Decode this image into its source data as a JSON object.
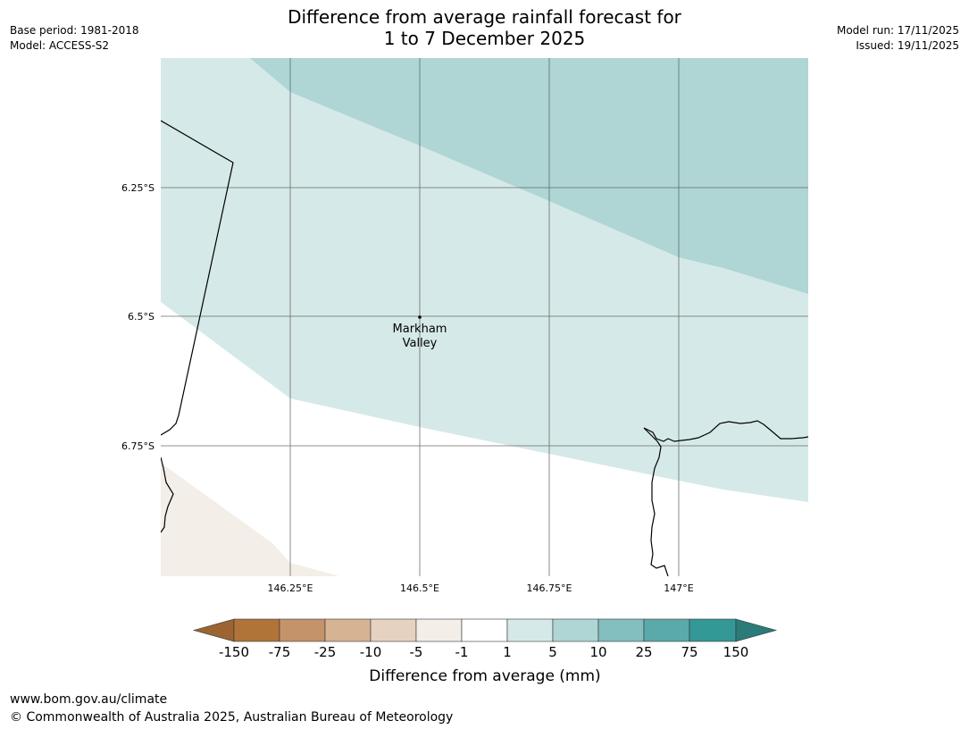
{
  "header": {
    "title_line1": "Difference from average rainfall forecast for",
    "title_line2": "1 to 7 December 2025",
    "base_period": "Base period: 1981-2018",
    "model": "Model: ACCESS-S2",
    "model_run": "Model run: 17/11/2025",
    "issued": "Issued: 19/11/2025"
  },
  "map": {
    "lat_labels": [
      "6.25°S",
      "6.5°S",
      "6.75°S"
    ],
    "lon_labels": [
      "146.25°E",
      "146.5°E",
      "146.75°E",
      "147°E"
    ],
    "place": {
      "name_line1": "Markham",
      "name_line2": "Valley",
      "lon": 146.5,
      "lat": -6.5
    },
    "colors": {
      "band_1_5": "#d5e9e8",
      "band_5_10": "#afd5d5",
      "band_neg5_neg1": "#f3eee7",
      "coast": "#000000",
      "grid": "#555555"
    }
  },
  "legend": {
    "ticks": [
      "-150",
      "-75",
      "-25",
      "-10",
      "-5",
      "-1",
      "1",
      "5",
      "10",
      "25",
      "75",
      "150"
    ],
    "colors": [
      "#9b6432",
      "#b07438",
      "#c4936a",
      "#d6b393",
      "#e6d2c0",
      "#f3eee7",
      "#ffffff",
      "#d5e9e8",
      "#afd5d5",
      "#82bfbe",
      "#5aaaaa",
      "#339896",
      "#2a7b79"
    ],
    "label": "Difference from average (mm)"
  },
  "footer": {
    "url": "www.bom.gov.au/climate",
    "copyright": "© Commonwealth of Australia 2025, Australian Bureau of Meteorology"
  }
}
